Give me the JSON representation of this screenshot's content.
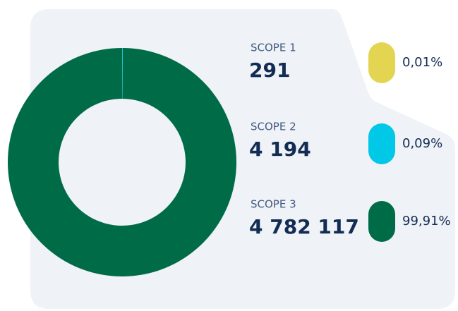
{
  "chart_data": {
    "type": "pie",
    "donut": true,
    "categories": [
      "SCOPE 1",
      "SCOPE 2",
      "SCOPE 3"
    ],
    "values": [
      291,
      4194,
      4782117
    ],
    "value_labels": [
      "291",
      "4 194",
      "4 782 117"
    ],
    "percentages": [
      0.01,
      0.09,
      99.91
    ],
    "percentage_labels": [
      "0,01%",
      "0,09%",
      "99,91%"
    ],
    "colors": [
      "#e3d452",
      "#00c8e6",
      "#006b47"
    ]
  }
}
